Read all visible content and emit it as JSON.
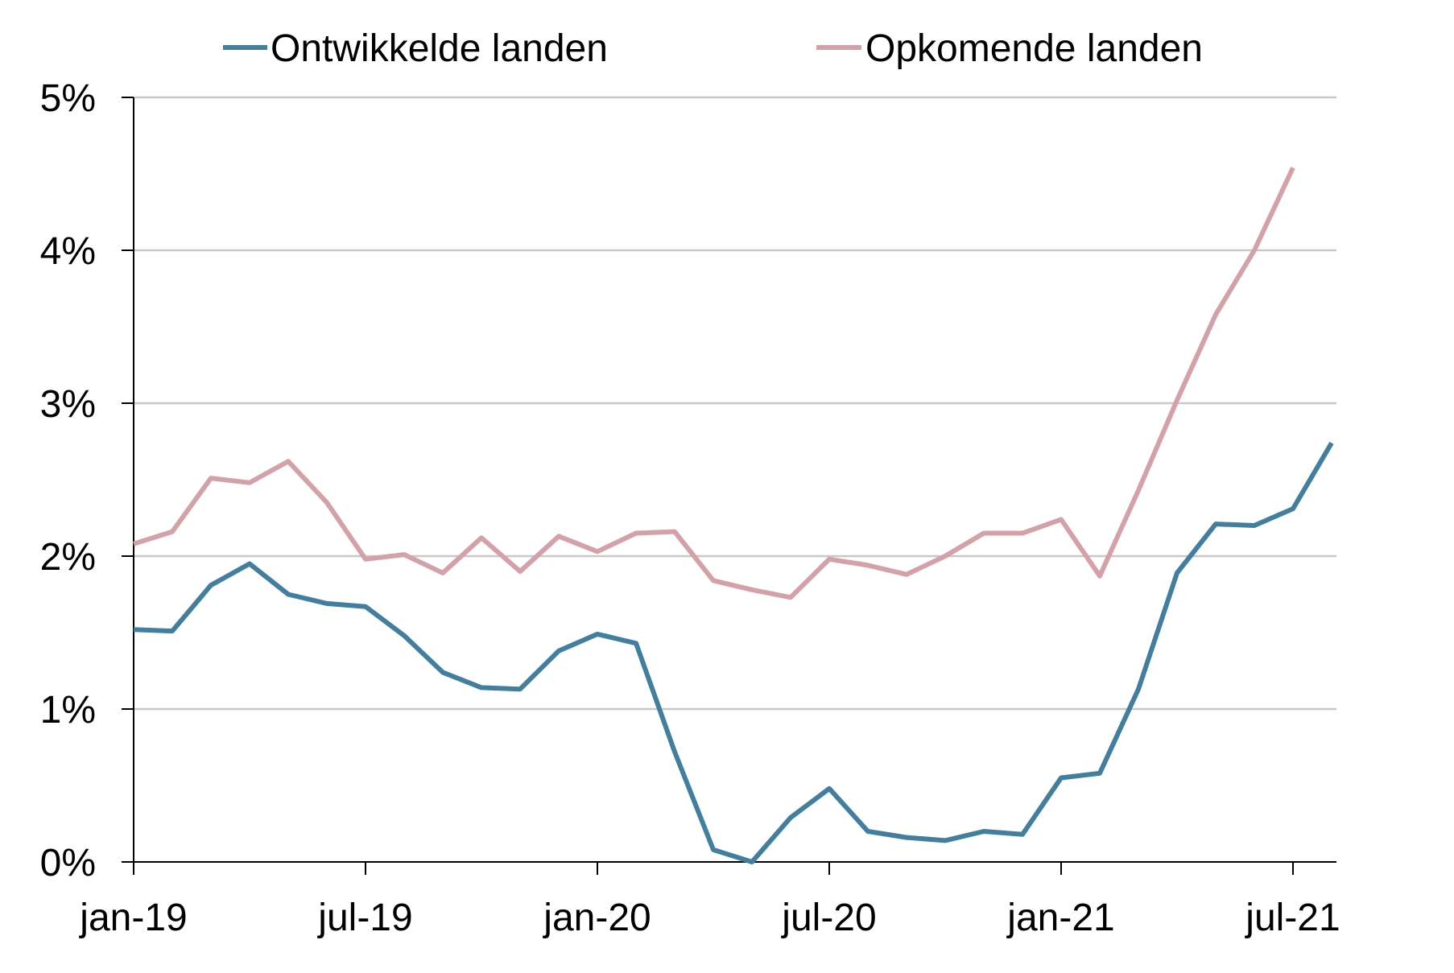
{
  "chart_data": {
    "type": "line",
    "title": "",
    "xlabel": "",
    "ylabel": "",
    "x": [
      "jan-19",
      "feb-19",
      "mrt-19",
      "apr-19",
      "mei-19",
      "jun-19",
      "jul-19",
      "aug-19",
      "sep-19",
      "okt-19",
      "nov-19",
      "dec-19",
      "jan-20",
      "feb-20",
      "mrt-20",
      "apr-20",
      "mei-20",
      "jun-20",
      "jul-20",
      "aug-20",
      "sep-20",
      "okt-20",
      "nov-20",
      "dec-20",
      "jan-21",
      "feb-21",
      "mrt-21",
      "apr-21",
      "mei-21",
      "jun-21",
      "jul-21",
      "aug-21"
    ],
    "x_tick_labels": [
      "jan-19",
      "jul-19",
      "jan-20",
      "jul-20",
      "jan-21",
      "jul-21"
    ],
    "x_tick_indices": [
      0,
      6,
      12,
      18,
      24,
      30
    ],
    "ylim": [
      0,
      5
    ],
    "y_ticks": [
      0,
      1,
      2,
      3,
      4,
      5
    ],
    "y_tick_labels": [
      "0%",
      "1%",
      "2%",
      "3%",
      "4%",
      "5%"
    ],
    "grid": true,
    "legend_position": "top",
    "series": [
      {
        "name": "Ontwikkelde landen",
        "color": "#427f9f",
        "values": [
          1.52,
          1.51,
          1.81,
          1.95,
          1.75,
          1.69,
          1.67,
          1.48,
          1.24,
          1.14,
          1.13,
          1.38,
          1.49,
          1.43,
          0.72,
          0.08,
          0.0,
          0.29,
          0.48,
          0.2,
          0.16,
          0.14,
          0.2,
          0.18,
          0.55,
          0.58,
          1.13,
          1.89,
          2.21,
          2.2,
          2.31,
          2.74
        ]
      },
      {
        "name": "Opkomende landen",
        "color": "#d4a1a8",
        "values": [
          2.08,
          2.16,
          2.51,
          2.48,
          2.62,
          2.35,
          1.98,
          2.01,
          1.89,
          2.12,
          1.9,
          2.13,
          2.03,
          2.15,
          2.16,
          1.84,
          1.78,
          1.73,
          1.98,
          1.94,
          1.88,
          2.0,
          2.15,
          2.15,
          2.24,
          1.87,
          2.43,
          3.02,
          3.58,
          4.0,
          4.54,
          null
        ]
      }
    ]
  }
}
